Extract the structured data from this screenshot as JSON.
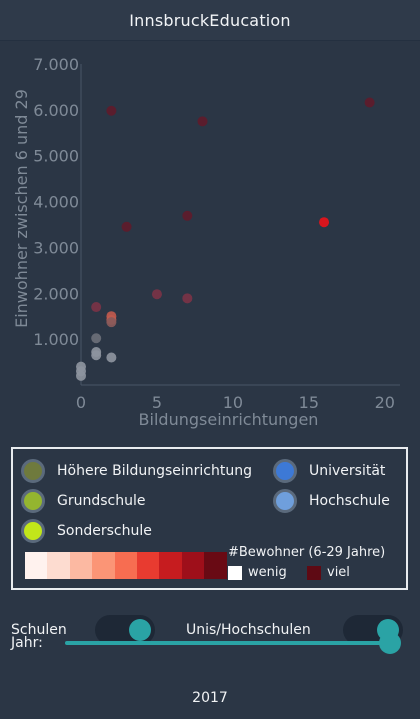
{
  "app": {
    "title": "InnsbruckEducation"
  },
  "chart_data": {
    "type": "scatter",
    "xlabel": "Bildungseinrichtungen",
    "ylabel": "Einwohner zwischen 6 und 29",
    "xlim": [
      0,
      21
    ],
    "ylim": [
      0,
      7000
    ],
    "x_ticks": [
      "0",
      "5",
      "10",
      "15",
      "20"
    ],
    "x_tick_values": [
      0,
      5,
      10,
      15,
      20
    ],
    "y_ticks": [
      "1.000",
      "2.000",
      "3.000",
      "4.000",
      "5.000",
      "6.000",
      "7.000"
    ],
    "y_tick_values": [
      1000,
      2000,
      3000,
      4000,
      5000,
      6000,
      7000
    ],
    "points": [
      {
        "x": 2,
        "y": 5980,
        "color": "#5e1b2b"
      },
      {
        "x": 8,
        "y": 5750,
        "color": "#5e1b2b"
      },
      {
        "x": 19,
        "y": 6160,
        "color": "#5e1b2b"
      },
      {
        "x": 7,
        "y": 3690,
        "color": "#5e1b2b"
      },
      {
        "x": 3,
        "y": 3450,
        "color": "#5e1b2b"
      },
      {
        "x": 16,
        "y": 3550,
        "color": "#e8121a"
      },
      {
        "x": 5,
        "y": 1980,
        "color": "#7a3346"
      },
      {
        "x": 7,
        "y": 1890,
        "color": "#7a3346"
      },
      {
        "x": 1,
        "y": 1700,
        "color": "#7a3346"
      },
      {
        "x": 2,
        "y": 1500,
        "color": "#c05a4e"
      },
      {
        "x": 2,
        "y": 1420,
        "color": "#c05a4e"
      },
      {
        "x": 2,
        "y": 1370,
        "color": "#8a5a5a"
      },
      {
        "x": 1,
        "y": 1020,
        "color": "#6b6f78"
      },
      {
        "x": 1,
        "y": 720,
        "color": "#8d949e"
      },
      {
        "x": 1,
        "y": 650,
        "color": "#8d949e"
      },
      {
        "x": 2,
        "y": 600,
        "color": "#8d949e"
      },
      {
        "x": 0,
        "y": 400,
        "color": "#8d949e"
      },
      {
        "x": 0,
        "y": 300,
        "color": "#8d949e"
      },
      {
        "x": 0,
        "y": 200,
        "color": "#8d949e"
      }
    ]
  },
  "legend": {
    "items": [
      {
        "label": "Höhere Bildungseinrichtung",
        "color": "#6f7a3d"
      },
      {
        "label": "Universität",
        "color": "#3d79d6"
      },
      {
        "label": "Grundschule",
        "color": "#94b52f"
      },
      {
        "label": "Hochschule",
        "color": "#6f9fdc"
      },
      {
        "label": "Sonderschule",
        "color": "#c2e61a"
      }
    ],
    "heat_title": "#Bewohner (6-29 Jahre)",
    "low_label": "wenig",
    "high_label": "viel",
    "low_color": "#ffffff",
    "high_color": "#5e0a14",
    "heat_colors": [
      "#fff2ee",
      "#fddcd0",
      "#fcb9a2",
      "#fb9576",
      "#f76d51",
      "#e83b30",
      "#c61c1f",
      "#9e0f1a",
      "#690a14"
    ]
  },
  "controls": {
    "schools_label": "Schulen",
    "unis_label": "Unis/Hochschulen",
    "year_label": "Jahr:",
    "year_value": "2017",
    "schools_on": true,
    "unis_on": true,
    "year_slider_fraction": 1.0
  }
}
